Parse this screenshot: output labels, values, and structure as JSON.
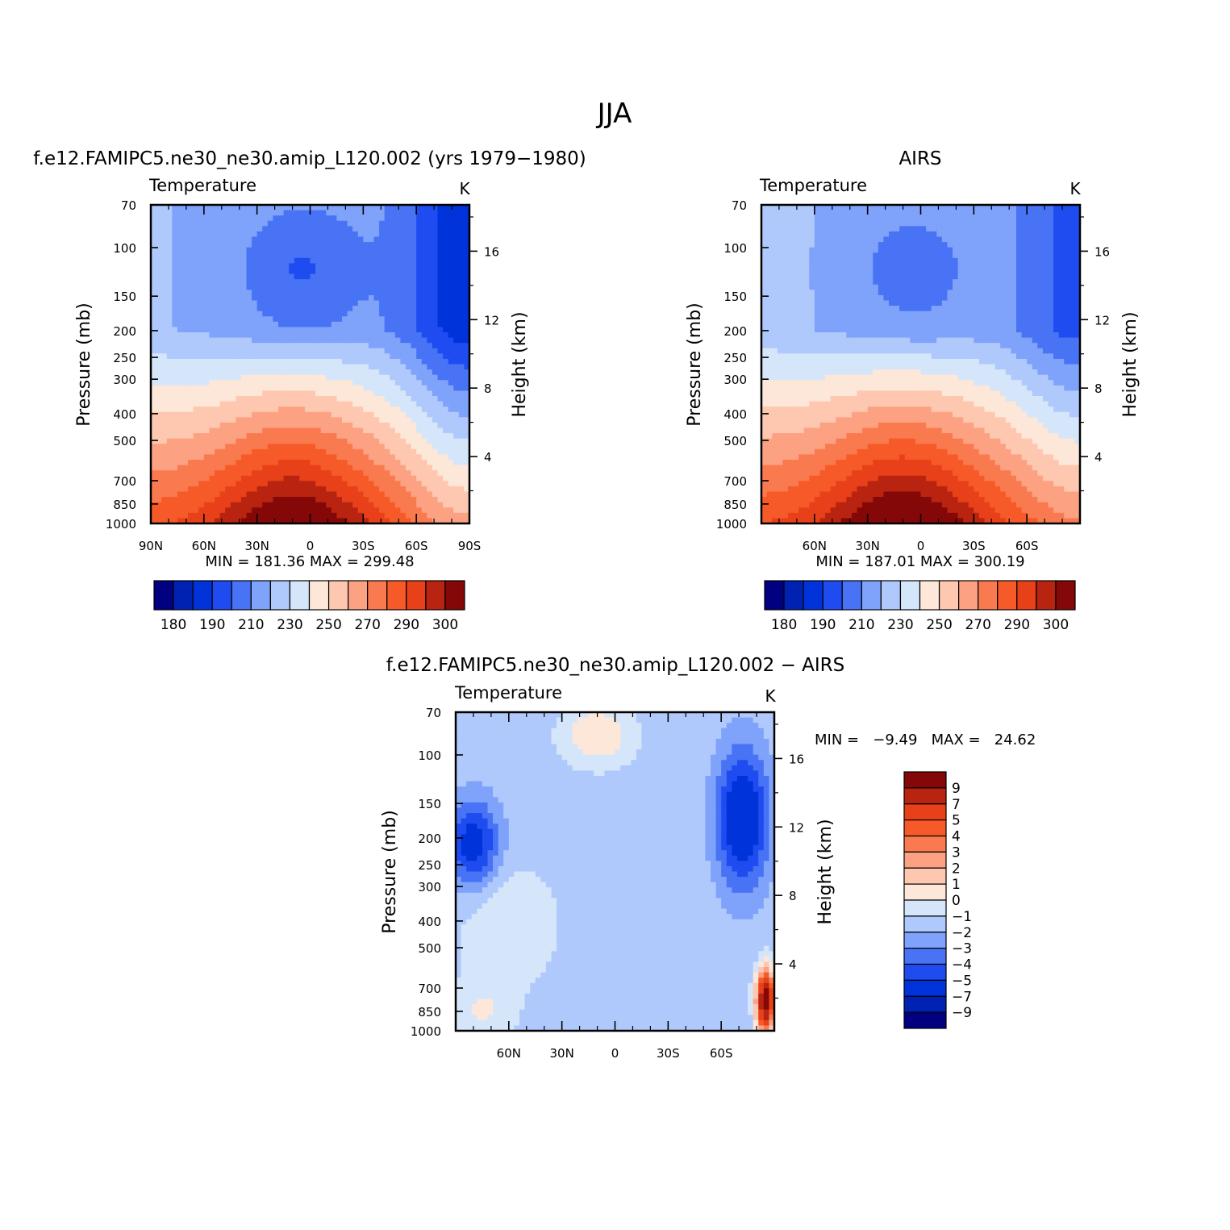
{
  "figure": {
    "title": "JJA",
    "colors": {
      "abs_levels": [
        "#000080",
        "#0022b3",
        "#0033d9",
        "#1f4cf0",
        "#4873f5",
        "#7fa2fa",
        "#b0c9fc",
        "#d5e6fa",
        "#fde7d8",
        "#fdc7b0",
        "#fca283",
        "#fa7a50",
        "#f75a29",
        "#e8411a",
        "#b82410",
        "#850808"
      ],
      "diff_levels": [
        "#000080",
        "#0022b3",
        "#0033d9",
        "#1f4cf0",
        "#4873f5",
        "#7fa2fa",
        "#b0c9fc",
        "#d5e6fa",
        "#fde7d8",
        "#fdc7b0",
        "#fca283",
        "#fa7a50",
        "#f75a29",
        "#e8411a",
        "#b82410",
        "#850808"
      ]
    }
  },
  "chart_data": [
    {
      "type": "contour",
      "panel_title": "f.e12.FAMIPC5.ne30_ne30.amip_L120.002 (yrs 1979−1980)",
      "field_label": "Temperature",
      "units": "K",
      "xlabel": "",
      "ylabel": "Pressure (mb)",
      "y2label": "Height (km)",
      "x_ticks": [
        "90N",
        "60N",
        "30N",
        "0",
        "30S",
        "60S",
        "90S"
      ],
      "x_tick_values": [
        90,
        60,
        30,
        0,
        -30,
        -60,
        -90
      ],
      "xlim": [
        90,
        -90
      ],
      "y_ticks": [
        70,
        100,
        150,
        200,
        250,
        300,
        400,
        500,
        700,
        850,
        1000
      ],
      "ylim": [
        70,
        1000
      ],
      "y_scale": "log",
      "y2_ticks": [
        4,
        8,
        12,
        16
      ],
      "stats": "MIN = 181.36   MAX = 299.48",
      "min": 181.36,
      "max": 299.48,
      "colorbar": {
        "orientation": "horizontal",
        "labels": [
          "180",
          "190",
          "210",
          "230",
          "250",
          "270",
          "290",
          "300"
        ],
        "n_boxes": 16
      },
      "field": {
        "base": 250,
        "tropo_top": 197,
        "cold_lat": 5,
        "cold_p": 120,
        "cold_amp": 12,
        "polar_cold": {
          "lat": -90,
          "amp": 30,
          "width": 35
        },
        "stretch": 0.7
      }
    },
    {
      "type": "contour",
      "panel_title": "AIRS",
      "field_label": "Temperature",
      "units": "K",
      "xlabel": "",
      "ylabel": "Pressure (mb)",
      "y2label": "Height (km)",
      "x_ticks": [
        "60N",
        "30N",
        "0",
        "30S",
        "60S"
      ],
      "x_tick_values": [
        60,
        30,
        0,
        -30,
        -60
      ],
      "xlim": [
        90,
        -90
      ],
      "y_ticks": [
        70,
        100,
        150,
        200,
        250,
        300,
        400,
        500,
        700,
        850,
        1000
      ],
      "ylim": [
        70,
        1000
      ],
      "y_scale": "log",
      "y2_ticks": [
        4,
        8,
        12,
        16
      ],
      "stats": "MIN = 187.01   MAX = 300.19",
      "min": 187.01,
      "max": 300.19,
      "colorbar": {
        "orientation": "horizontal",
        "labels": [
          "180",
          "190",
          "210",
          "230",
          "250",
          "270",
          "290",
          "300"
        ],
        "n_boxes": 16
      },
      "field": {
        "base": 252,
        "tropo_top": 200,
        "cold_lat": 5,
        "cold_p": 120,
        "cold_amp": 10,
        "polar_cold": {
          "lat": -90,
          "amp": 22,
          "width": 35
        },
        "stretch": 0.7
      }
    },
    {
      "type": "contour",
      "panel_title": "f.e12.FAMIPC5.ne30_ne30.amip_L120.002 − AIRS",
      "field_label": "Temperature",
      "units": "K",
      "xlabel": "",
      "ylabel": "Pressure (mb)",
      "y2label": "Height (km)",
      "x_ticks": [
        "60N",
        "30N",
        "0",
        "30S",
        "60S"
      ],
      "x_tick_values": [
        60,
        30,
        0,
        -30,
        -60
      ],
      "xlim": [
        90,
        -90
      ],
      "y_ticks": [
        70,
        100,
        150,
        200,
        250,
        300,
        400,
        500,
        700,
        850,
        1000
      ],
      "ylim": [
        70,
        1000
      ],
      "y_scale": "log",
      "y2_ticks": [
        4,
        8,
        12,
        16
      ],
      "stats": "MIN =   −9.49   MAX =   24.62",
      "min": -9.49,
      "max": 24.62,
      "colorbar": {
        "orientation": "vertical",
        "labels": [
          "9",
          "7",
          "5",
          "4",
          "3",
          "2",
          "1",
          "0",
          "−1",
          "−2",
          "−3",
          "−4",
          "−5",
          "−7",
          "−9"
        ],
        "n_boxes": 16
      }
    }
  ]
}
